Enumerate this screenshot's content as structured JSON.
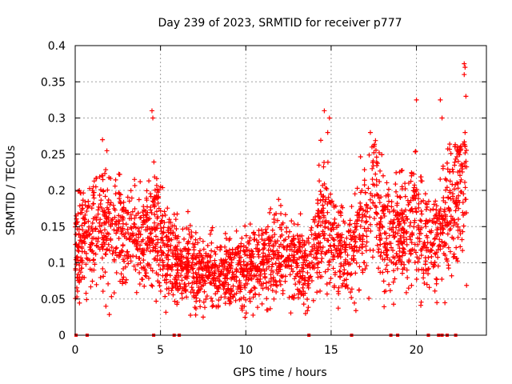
{
  "chart_data": {
    "type": "scatter",
    "title": "Day 239 of 2023, SRMTID for receiver p777",
    "xlabel": "GPS time / hours",
    "ylabel": "SRMTID / TECUs",
    "xlim": [
      0,
      24.1
    ],
    "ylim": [
      0,
      0.4
    ],
    "x_ticks": [
      0,
      5,
      10,
      15,
      20
    ],
    "y_ticks": [
      0,
      0.05,
      0.1,
      0.15,
      0.2,
      0.25,
      0.3,
      0.35,
      0.4
    ],
    "x_tick_labels": [
      "0",
      "5",
      "10",
      "15",
      "20"
    ],
    "y_tick_labels": [
      "0",
      "0.05",
      "0.1",
      "0.15",
      "0.2",
      "0.25",
      "0.3",
      "0.35",
      "0.4"
    ],
    "grid": true,
    "marker": "plus",
    "color": "#ff0000",
    "series": [
      {
        "name": "SRMTID",
        "envelope_description": "approximate mean trend (hour, TECU) of the dense point cloud",
        "trend": [
          [
            0.0,
            0.13
          ],
          [
            1.0,
            0.14
          ],
          [
            2.0,
            0.15
          ],
          [
            3.0,
            0.14
          ],
          [
            4.0,
            0.12
          ],
          [
            4.6,
            0.16
          ],
          [
            5.0,
            0.13
          ],
          [
            6.0,
            0.1
          ],
          [
            7.0,
            0.09
          ],
          [
            8.0,
            0.085
          ],
          [
            9.0,
            0.09
          ],
          [
            10.0,
            0.09
          ],
          [
            11.0,
            0.1
          ],
          [
            12.0,
            0.11
          ],
          [
            13.0,
            0.1
          ],
          [
            13.8,
            0.09
          ],
          [
            14.5,
            0.17
          ],
          [
            15.0,
            0.14
          ],
          [
            16.0,
            0.11
          ],
          [
            17.0,
            0.15
          ],
          [
            17.5,
            0.2
          ],
          [
            18.0,
            0.14
          ],
          [
            19.0,
            0.14
          ],
          [
            20.0,
            0.16
          ],
          [
            21.0,
            0.12
          ],
          [
            21.5,
            0.15
          ],
          [
            22.0,
            0.17
          ],
          [
            22.8,
            0.24
          ]
        ],
        "highlighted_points": [
          [
            4.5,
            0.31
          ],
          [
            4.55,
            0.3
          ],
          [
            14.6,
            0.31
          ],
          [
            14.9,
            0.3
          ],
          [
            14.8,
            0.28
          ],
          [
            20.0,
            0.325
          ],
          [
            21.4,
            0.325
          ],
          [
            21.5,
            0.3
          ],
          [
            22.8,
            0.375
          ],
          [
            22.85,
            0.37
          ],
          [
            22.8,
            0.36
          ],
          [
            22.9,
            0.33
          ],
          [
            22.85,
            0.28
          ],
          [
            1.6,
            0.27
          ],
          [
            17.3,
            0.28
          ],
          [
            7.5,
            0.025
          ],
          [
            13.5,
            0.03
          ],
          [
            1.8,
            0.04
          ],
          [
            21.2,
            0.045
          ]
        ],
        "zero_points_x": [
          0.05,
          0.7,
          4.6,
          5.8,
          6.1,
          13.7,
          16.2,
          18.5,
          18.9,
          20.7,
          21.3,
          21.5,
          21.8,
          22.3
        ]
      }
    ]
  }
}
